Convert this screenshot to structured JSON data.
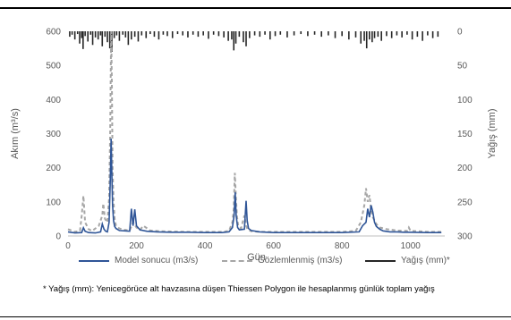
{
  "chart_data": {
    "type": "line",
    "title": "",
    "xlabel": "Gün",
    "ylabel": "Akım (m³/s)",
    "y2label": "Yağış (mm)",
    "xlim": [
      0,
      1100
    ],
    "ylim": [
      0,
      600
    ],
    "y2lim": [
      0,
      300
    ],
    "y2_inverted": true,
    "xticks": [
      "0",
      "200",
      "400",
      "600",
      "800",
      "1000"
    ],
    "yticks": [
      "0",
      "100",
      "200",
      "300",
      "400",
      "500",
      "600"
    ],
    "y2ticks": [
      "0",
      "50",
      "100",
      "150",
      "200",
      "250",
      "300"
    ],
    "grid": false,
    "legend_position": "bottom",
    "series": [
      {
        "name": "Model sonucu (m3/s)",
        "color": "#2f5597",
        "style": "solid",
        "axis": "left",
        "x": [
          0,
          20,
          40,
          45,
          50,
          60,
          80,
          95,
          100,
          105,
          110,
          115,
          120,
          123,
          126,
          128,
          130,
          133,
          136,
          140,
          150,
          180,
          185,
          190,
          195,
          200,
          210,
          230,
          260,
          300,
          350,
          400,
          450,
          470,
          480,
          485,
          488,
          491,
          495,
          500,
          515,
          520,
          523,
          527,
          535,
          560,
          600,
          650,
          700,
          750,
          800,
          850,
          860,
          870,
          875,
          880,
          885,
          890,
          895,
          900,
          910,
          920,
          940,
          960,
          980,
          1000,
          1050,
          1090
        ],
        "y": [
          12,
          9,
          10,
          24,
          14,
          10,
          9,
          12,
          35,
          20,
          14,
          12,
          40,
          150,
          285,
          180,
          90,
          45,
          28,
          22,
          16,
          14,
          80,
          30,
          78,
          30,
          18,
          14,
          12,
          11,
          11,
          10,
          10,
          12,
          25,
          60,
          128,
          60,
          25,
          18,
          20,
          103,
          45,
          22,
          16,
          12,
          10,
          10,
          10,
          10,
          10,
          12,
          30,
          40,
          80,
          55,
          90,
          70,
          40,
          28,
          20,
          15,
          12,
          12,
          11,
          11,
          10,
          10
        ]
      },
      {
        "name": "Gözlemlenmiş (m3/s)",
        "color": "#a6a6a6",
        "style": "dashed",
        "axis": "left",
        "x": [
          0,
          20,
          35,
          40,
          45,
          50,
          60,
          70,
          80,
          90,
          100,
          103,
          108,
          115,
          120,
          123,
          126,
          128,
          130,
          133,
          136,
          140,
          150,
          165,
          180,
          190,
          200,
          210,
          220,
          240,
          270,
          300,
          350,
          400,
          450,
          470,
          480,
          484,
          487,
          490,
          493,
          497,
          505,
          515,
          520,
          525,
          535,
          560,
          600,
          650,
          700,
          750,
          800,
          840,
          855,
          865,
          870,
          875,
          880,
          885,
          890,
          900,
          910,
          930,
          960,
          990,
          995,
          1000,
          1020,
          1050,
          1090
        ],
        "y": [
          20,
          12,
          15,
          60,
          118,
          40,
          20,
          15,
          22,
          30,
          60,
          95,
          50,
          40,
          110,
          300,
          600,
          450,
          200,
          100,
          50,
          30,
          22,
          18,
          16,
          40,
          25,
          18,
          30,
          16,
          14,
          13,
          12,
          12,
          12,
          15,
          40,
          80,
          185,
          120,
          60,
          30,
          22,
          60,
          30,
          18,
          14,
          12,
          12,
          12,
          12,
          12,
          12,
          15,
          40,
          90,
          140,
          100,
          120,
          75,
          55,
          35,
          25,
          20,
          16,
          15,
          25,
          15,
          14,
          12,
          12
        ]
      },
      {
        "name": "Yağış (mm)*",
        "color": "#262626",
        "style": "bars-from-top",
        "axis": "right",
        "x": [
          5,
          12,
          20,
          28,
          34,
          40,
          44,
          50,
          58,
          66,
          72,
          80,
          88,
          95,
          100,
          108,
          115,
          122,
          128,
          135,
          142,
          150,
          160,
          168,
          176,
          185,
          195,
          205,
          215,
          228,
          240,
          252,
          265,
          278,
          290,
          305,
          320,
          335,
          350,
          365,
          380,
          395,
          410,
          425,
          440,
          455,
          468,
          478,
          484,
          490,
          500,
          512,
          520,
          530,
          545,
          560,
          575,
          590,
          605,
          620,
          640,
          660,
          680,
          700,
          720,
          740,
          760,
          780,
          800,
          820,
          840,
          855,
          865,
          872,
          880,
          888,
          895,
          905,
          915,
          930,
          945,
          960,
          975,
          990,
          1005,
          1020,
          1035,
          1050,
          1065,
          1080
        ],
        "y": [
          8,
          5,
          12,
          4,
          18,
          10,
          26,
          7,
          15,
          5,
          20,
          9,
          12,
          6,
          22,
          8,
          16,
          25,
          30,
          10,
          6,
          14,
          5,
          9,
          20,
          12,
          8,
          15,
          6,
          10,
          4,
          8,
          12,
          5,
          7,
          10,
          4,
          6,
          9,
          5,
          8,
          6,
          11,
          5,
          7,
          9,
          14,
          12,
          28,
          18,
          8,
          16,
          22,
          10,
          6,
          8,
          5,
          12,
          7,
          5,
          9,
          6,
          4,
          7,
          5,
          8,
          6,
          10,
          7,
          12,
          9,
          18,
          14,
          25,
          12,
          16,
          10,
          8,
          14,
          7,
          10,
          6,
          9,
          5,
          12,
          8,
          14,
          6,
          10,
          8
        ]
      }
    ],
    "footnote": "* Yağış (mm): Yenicegörüce alt havzasına düşen Thiessen Polygon ile hesaplanmış  günlük toplam yağış"
  }
}
